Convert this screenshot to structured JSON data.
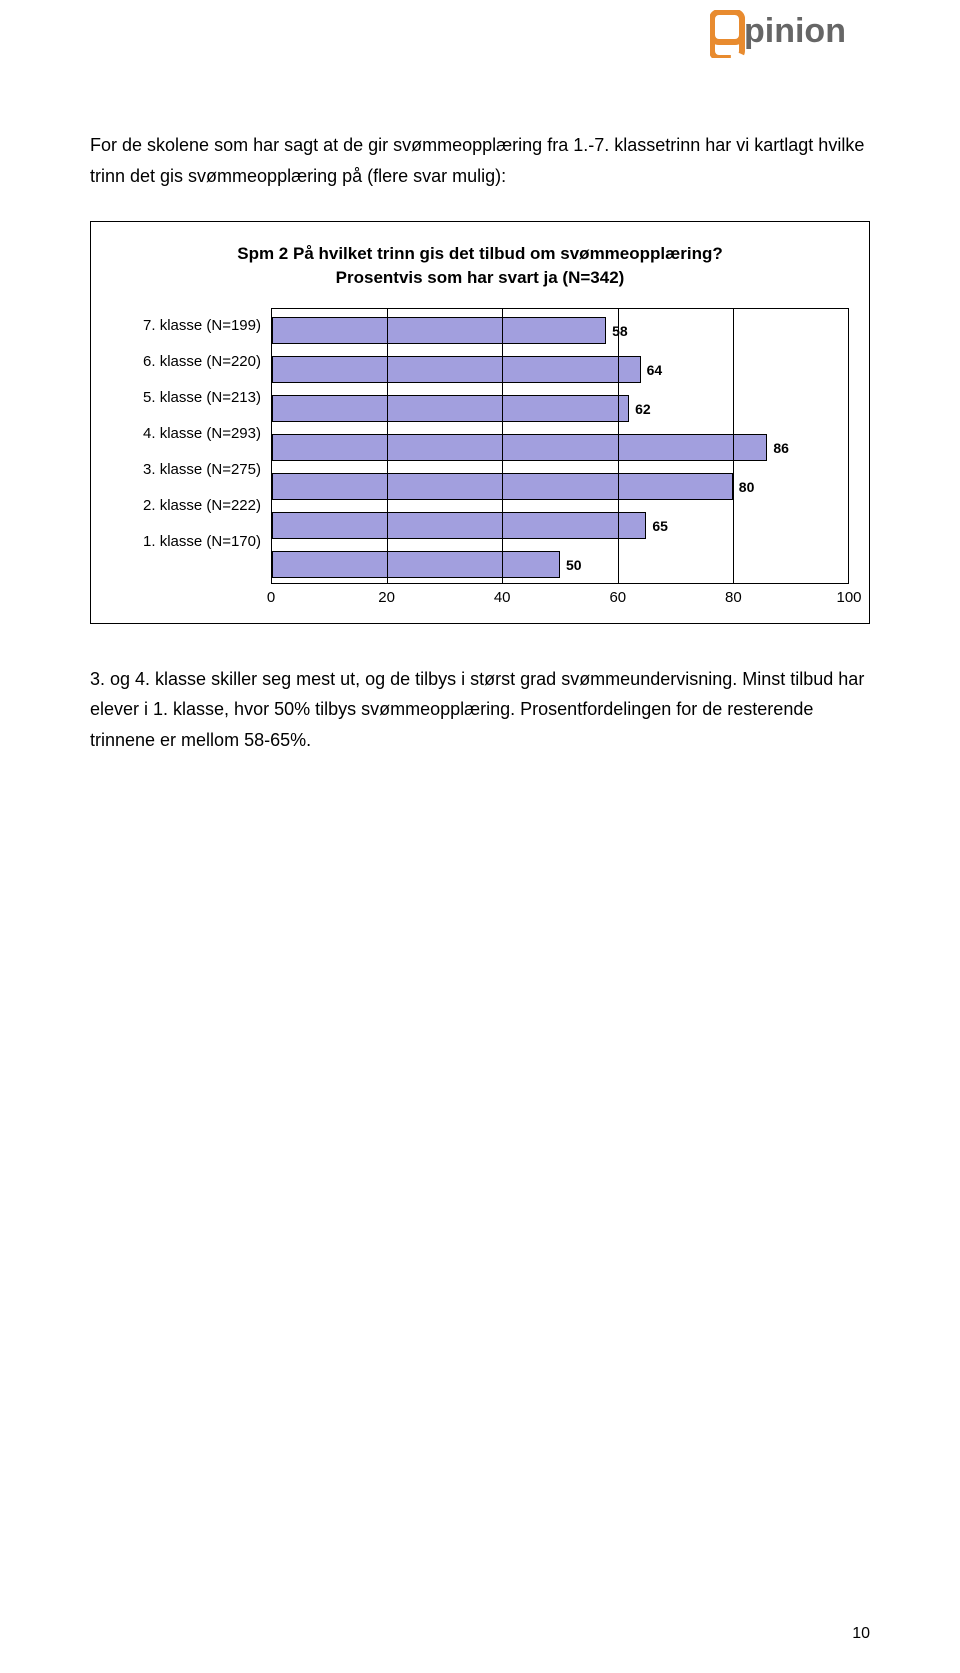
{
  "logo": {
    "text": "pinion",
    "text_color": "#666666",
    "accent_color": "#e88b2f"
  },
  "intro_paragraph": "For de skolene som har sagt at de gir svømmeopplæring fra 1.-7. klassetrinn har vi kartlagt hvilke trinn det gis svømmeopplæring på (flere svar mulig):",
  "chart": {
    "type": "bar",
    "title_line1": "Spm 2 På hvilket trinn gis det tilbud om svømmeopplæring?",
    "title_line2": "Prosentvis som har svart ja (N=342)",
    "xlim": [
      0,
      100
    ],
    "xtick_step": 20,
    "xticks": [
      0,
      20,
      40,
      60,
      80,
      100
    ],
    "bar_color": "#a29fde",
    "bar_border": "#000000",
    "grid_color": "#000000",
    "background_color": "#ffffff",
    "label_fontsize": 15,
    "value_fontsize": 14,
    "categories": [
      {
        "label": "7. klasse (N=199)",
        "value": 58
      },
      {
        "label": "6. klasse (N=220)",
        "value": 64
      },
      {
        "label": "5. klasse (N=213)",
        "value": 62
      },
      {
        "label": "4. klasse (N=293)",
        "value": 86
      },
      {
        "label": "3. klasse (N=275)",
        "value": 80
      },
      {
        "label": "2. klasse (N=222)",
        "value": 65
      },
      {
        "label": "1. klasse (N=170)",
        "value": 50
      }
    ]
  },
  "body_paragraph": "3. og 4. klasse skiller seg mest ut, og de tilbys i størst grad svømmeundervisning. Minst tilbud har elever i 1. klasse, hvor 50% tilbys svømmeopplæring. Prosentfordelingen for de resterende trinnene er mellom 58-65%.",
  "page_number": "10"
}
